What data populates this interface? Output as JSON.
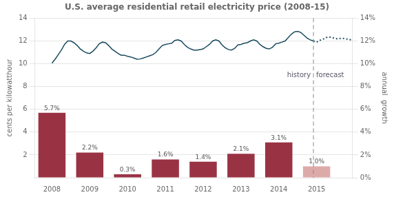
{
  "chart_data": {
    "type": "bar",
    "title": "U.S. average residential retail electricity price (2008-15)",
    "ylabel": "cents per kilowatthour",
    "y2label": "annual  growth",
    "series": [
      {
        "type": "bar",
        "axis": "y2",
        "x": [
          2008,
          2009,
          2010,
          2011,
          2012,
          2013,
          2014,
          2015
        ],
        "values": [
          5.7,
          2.2,
          0.3,
          1.6,
          1.4,
          2.1,
          3.1,
          1.0
        ],
        "value_labels": [
          "5.7%",
          "2.2%",
          "0.3%",
          "1.6%",
          "1.4%",
          "2.1%",
          "3.1%",
          "1.0%"
        ],
        "colors": [
          "#993344",
          "#993344",
          "#993344",
          "#993344",
          "#993344",
          "#993344",
          "#993344",
          "#ddaaaa"
        ]
      },
      {
        "type": "line",
        "color": "#1a4a5e",
        "line_style": "solid",
        "x": [
          2008.0,
          2008.083,
          2008.167,
          2008.25,
          2008.333,
          2008.417,
          2008.5,
          2008.583,
          2008.667,
          2008.75,
          2008.833,
          2008.917,
          2009.0,
          2009.083,
          2009.167,
          2009.25,
          2009.333,
          2009.417,
          2009.5,
          2009.583,
          2009.667,
          2009.75,
          2009.833,
          2009.917,
          2010.0,
          2010.083,
          2010.167,
          2010.25,
          2010.333,
          2010.417,
          2010.5,
          2010.583,
          2010.667,
          2010.75,
          2010.833,
          2010.917,
          2011.0,
          2011.083,
          2011.167,
          2011.25,
          2011.333,
          2011.417,
          2011.5,
          2011.583,
          2011.667,
          2011.75,
          2011.833,
          2011.917,
          2012.0,
          2012.083,
          2012.167,
          2012.25,
          2012.333,
          2012.417,
          2012.5,
          2012.583,
          2012.667,
          2012.75,
          2012.833,
          2012.917,
          2013.0,
          2013.083,
          2013.167,
          2013.25,
          2013.333,
          2013.417,
          2013.5,
          2013.583,
          2013.667,
          2013.75,
          2013.833,
          2013.917,
          2014.0,
          2014.083,
          2014.167,
          2014.25,
          2014.333,
          2014.417,
          2014.5,
          2014.583,
          2014.667,
          2014.75,
          2014.833,
          2014.917
        ],
        "values": [
          10.05,
          10.4,
          10.8,
          11.2,
          11.7,
          12.0,
          12.0,
          11.85,
          11.6,
          11.3,
          11.1,
          10.95,
          10.9,
          11.1,
          11.4,
          11.75,
          11.9,
          11.85,
          11.6,
          11.3,
          11.1,
          10.9,
          10.75,
          10.75,
          10.65,
          10.6,
          10.5,
          10.4,
          10.42,
          10.5,
          10.6,
          10.7,
          10.8,
          11.0,
          11.3,
          11.6,
          11.7,
          11.75,
          11.8,
          12.05,
          12.1,
          12.0,
          11.7,
          11.45,
          11.3,
          11.2,
          11.2,
          11.25,
          11.3,
          11.5,
          11.7,
          12.0,
          12.1,
          12.0,
          11.65,
          11.4,
          11.25,
          11.2,
          11.35,
          11.65,
          11.7,
          11.8,
          11.85,
          12.0,
          12.1,
          12.0,
          11.7,
          11.5,
          11.35,
          11.3,
          11.45,
          11.75,
          11.8,
          11.9,
          12.0,
          12.3,
          12.6,
          12.8,
          12.85,
          12.75,
          12.5,
          12.25,
          12.1,
          12.0
        ]
      },
      {
        "type": "line",
        "color": "#1a4a5e",
        "line_style": "dotted",
        "x": [
          2014.917,
          2015.0,
          2015.083,
          2015.167,
          2015.25,
          2015.333,
          2015.417,
          2015.5,
          2015.583,
          2015.667,
          2015.75,
          2015.833,
          2015.917
        ],
        "values": [
          12.0,
          11.9,
          12.05,
          12.15,
          12.3,
          12.35,
          12.3,
          12.2,
          12.2,
          12.25,
          12.2,
          12.15,
          12.1
        ]
      }
    ],
    "data_labels": true,
    "annotations": [
      {
        "x": 2014.917,
        "line_style": "dashed",
        "y": 9,
        "text_left": "history",
        "text_right": "forecast"
      }
    ],
    "xlim": [
      2007.55,
      2015.95
    ],
    "xticks": [
      2008,
      2009,
      2010,
      2011,
      2012,
      2013,
      2014,
      2015
    ],
    "ylim": [
      0,
      14
    ],
    "yticks": [
      2,
      4,
      6,
      8,
      10,
      12,
      14
    ],
    "y2lim": [
      0,
      14
    ],
    "y2ticks": [
      {
        "value": 0,
        "label": "0%"
      },
      {
        "value": 2,
        "label": "2%"
      },
      {
        "value": 4,
        "label": "4%"
      },
      {
        "value": 6,
        "label": "6%"
      },
      {
        "value": 8,
        "label": "8%"
      },
      {
        "value": 10,
        "label": "10%"
      },
      {
        "value": 12,
        "label": "12%"
      },
      {
        "value": 14,
        "label": "14%"
      }
    ],
    "grid": true
  }
}
